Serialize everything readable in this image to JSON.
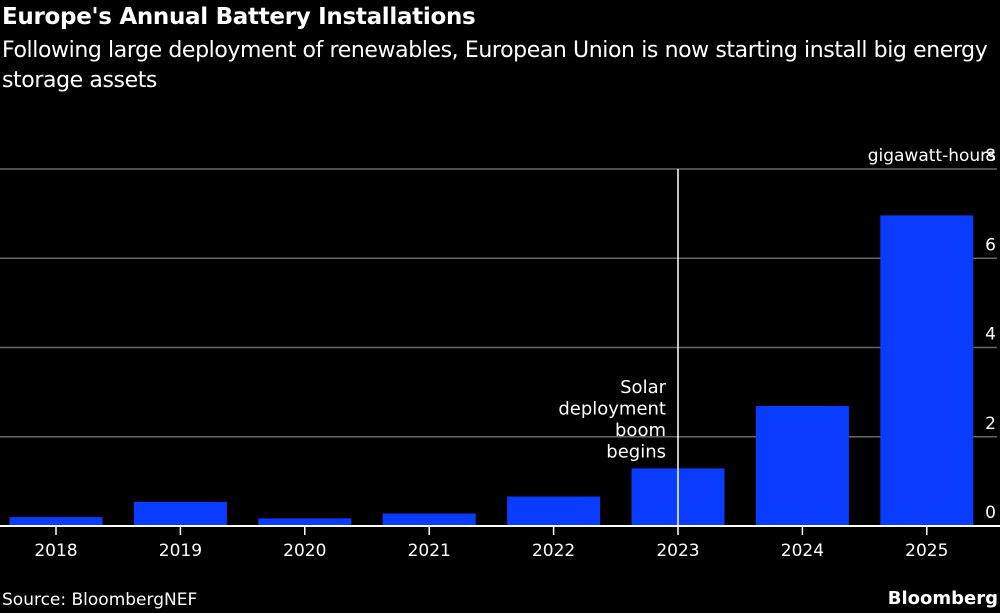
{
  "header": {
    "title": "Europe's Annual Battery Installations",
    "subtitle": "Following large deployment of renewables, European Union is now starting install big energy storage assets"
  },
  "footer": {
    "source": "Source: BloombergNEF",
    "brand": "Bloomberg"
  },
  "colors": {
    "bar": "#0a3cff",
    "grid": "#666666",
    "axis": "#ffffff",
    "background": "#000000"
  },
  "chart_data": {
    "type": "bar",
    "title": "Europe's Annual Battery Installations",
    "subtitle": "Following large deployment of renewables, European Union is now starting install big energy storage assets",
    "xlabel": "",
    "ylabel": "gigawatt-hours",
    "categories": [
      "2018",
      "2019",
      "2020",
      "2021",
      "2022",
      "2023",
      "2024",
      "2025"
    ],
    "values": [
      0.2,
      0.54,
      0.17,
      0.28,
      0.66,
      1.29,
      2.69,
      6.96
    ],
    "ylim": [
      0,
      8
    ],
    "yticks": [
      0,
      2,
      4,
      6,
      8
    ],
    "y_axis_side": "right",
    "grid": true,
    "legend": "none",
    "annotations": [
      {
        "x": "2023",
        "type": "vertical-line",
        "text_lines": [
          "Solar",
          "deployment",
          "boom",
          "begins"
        ]
      }
    ]
  }
}
